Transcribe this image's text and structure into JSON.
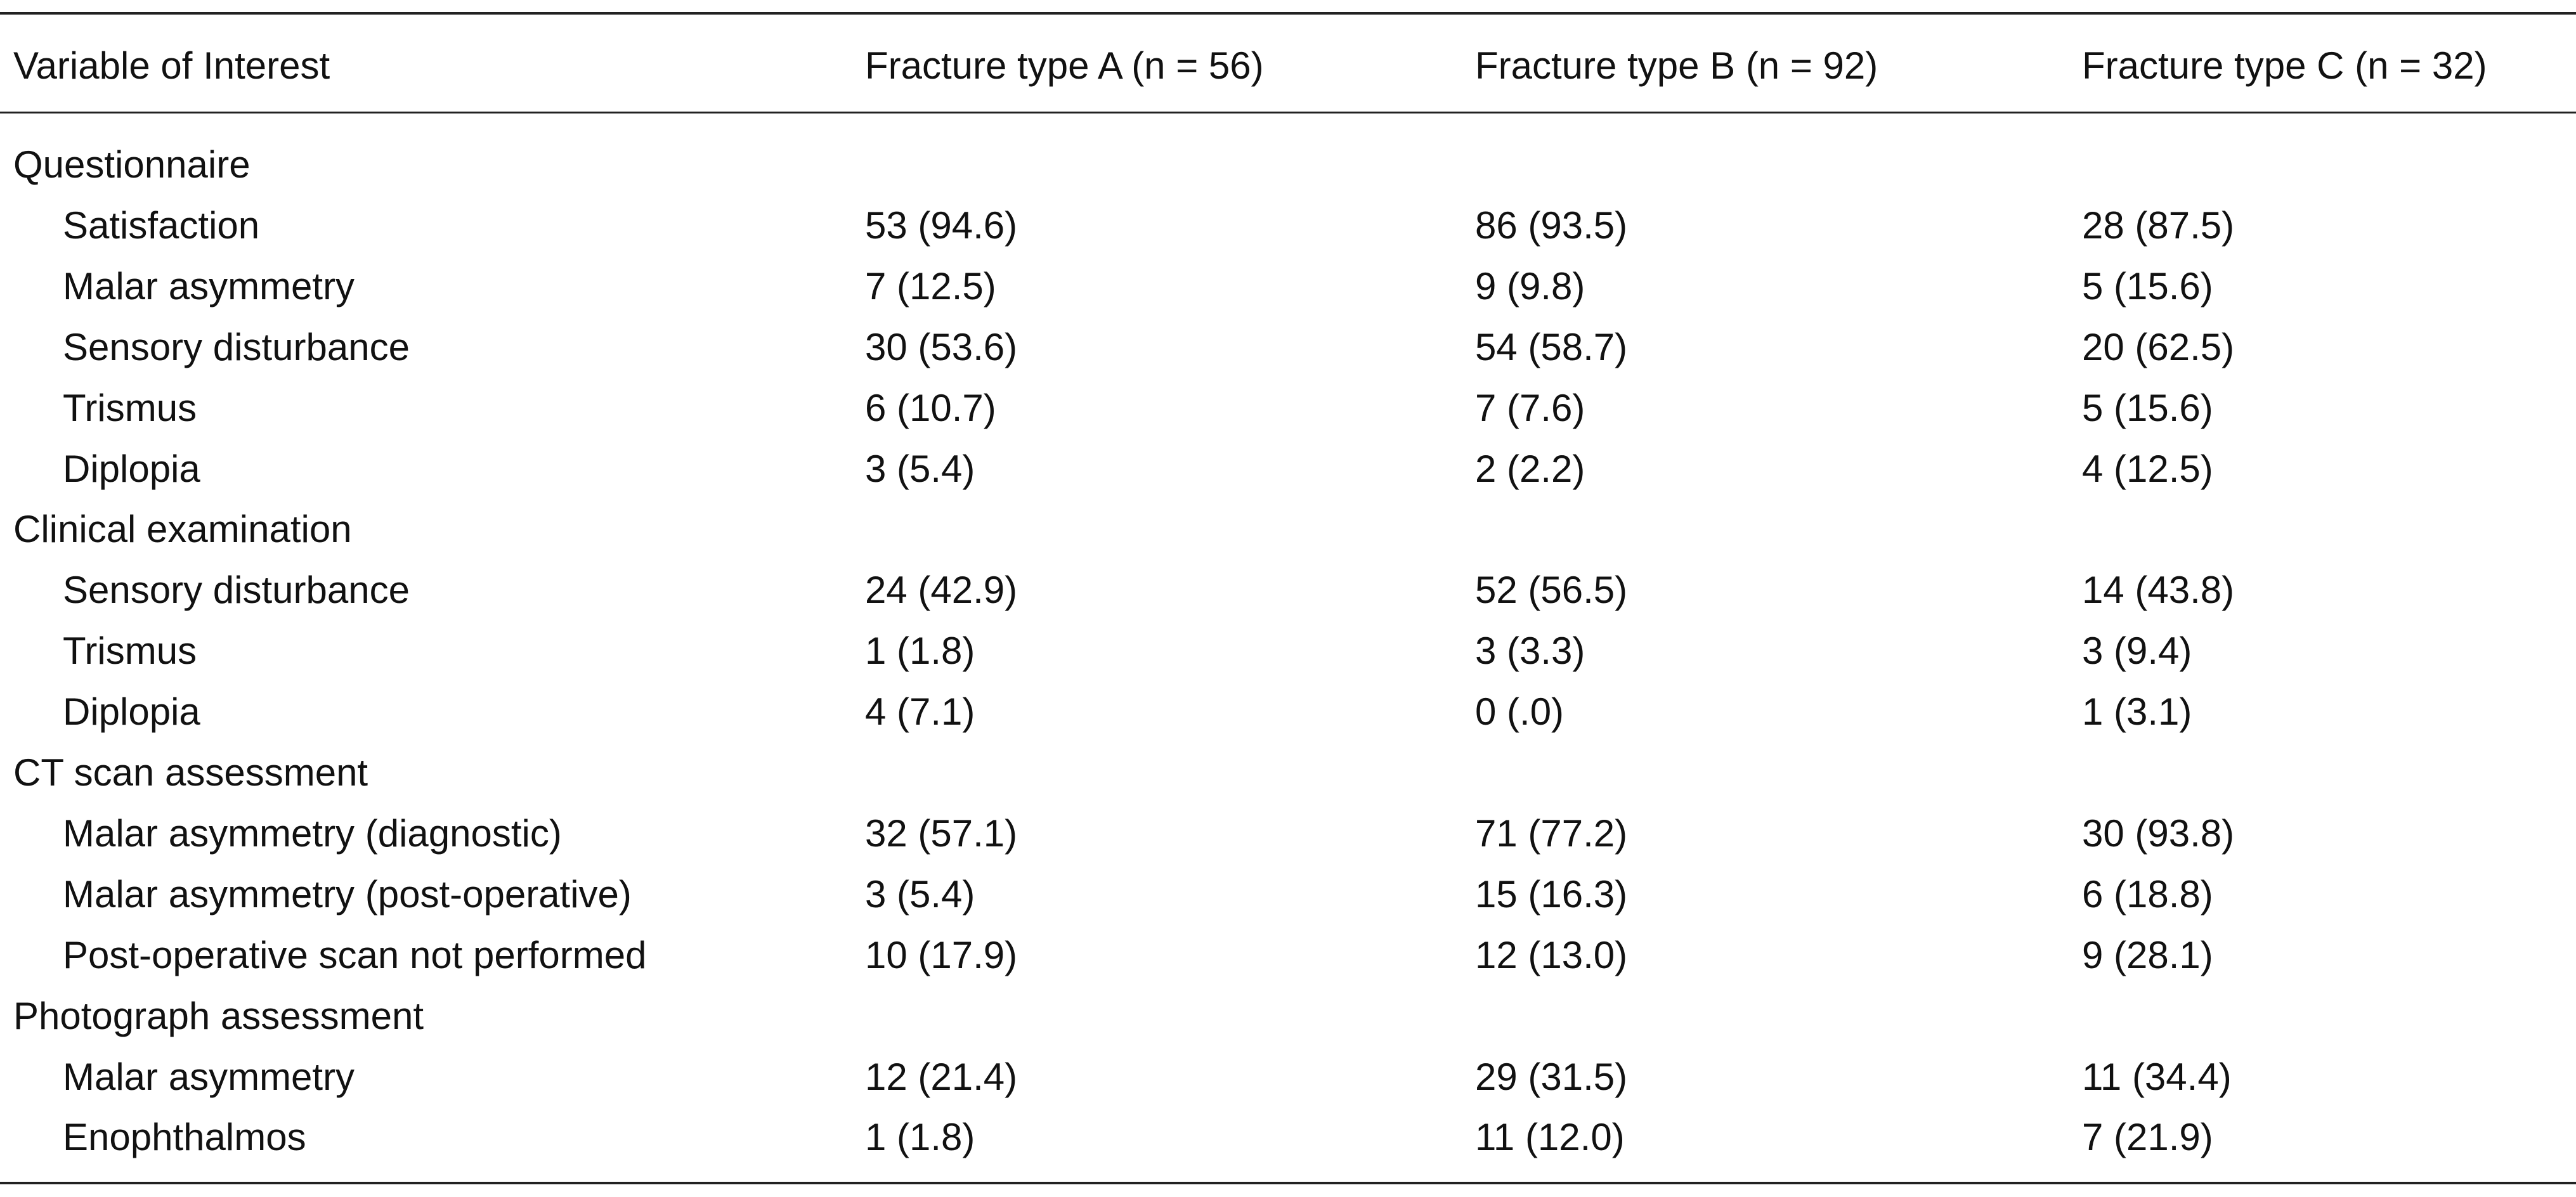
{
  "table": {
    "header": [
      "Variable of Interest",
      "Fracture type A (n = 56)",
      "Fracture type B (n = 92)",
      "Fracture type C (n = 32)"
    ],
    "groups": [
      {
        "title": "Questionnaire",
        "rows": [
          [
            "Satisfaction",
            "53 (94.6)",
            "86 (93.5)",
            "28 (87.5)"
          ],
          [
            "Malar asymmetry",
            "7 (12.5)",
            "9 (9.8)",
            "5 (15.6)"
          ],
          [
            "Sensory disturbance",
            "30 (53.6)",
            "54 (58.7)",
            "20 (62.5)"
          ],
          [
            "Trismus",
            "6 (10.7)",
            "7 (7.6)",
            "5 (15.6)"
          ],
          [
            "Diplopia",
            "3 (5.4)",
            "2 (2.2)",
            "4 (12.5)"
          ]
        ]
      },
      {
        "title": "Clinical examination",
        "rows": [
          [
            "Sensory disturbance",
            "24 (42.9)",
            "52 (56.5)",
            "14 (43.8)"
          ],
          [
            "Trismus",
            "1 (1.8)",
            "3 (3.3)",
            "3 (9.4)"
          ],
          [
            "Diplopia",
            "4 (7.1)",
            "0 (.0)",
            "1 (3.1)"
          ]
        ]
      },
      {
        "title": "CT scan assessment",
        "rows": [
          [
            "Malar asymmetry (diagnostic)",
            "32 (57.1)",
            "71 (77.2)",
            "30 (93.8)"
          ],
          [
            "Malar asymmetry (post-operative)",
            "3 (5.4)",
            "15 (16.3)",
            "6 (18.8)"
          ],
          [
            "Post-operative scan not performed",
            "10 (17.9)",
            "12 (13.0)",
            "9 (28.1)"
          ]
        ]
      },
      {
        "title": "Photograph assessment",
        "rows": [
          [
            "Malar asymmetry",
            "12 (21.4)",
            "29 (31.5)",
            "11 (34.4)"
          ],
          [
            "Enophthalmos",
            "1 (1.8)",
            "11 (12.0)",
            "7 (21.9)"
          ]
        ]
      }
    ]
  }
}
